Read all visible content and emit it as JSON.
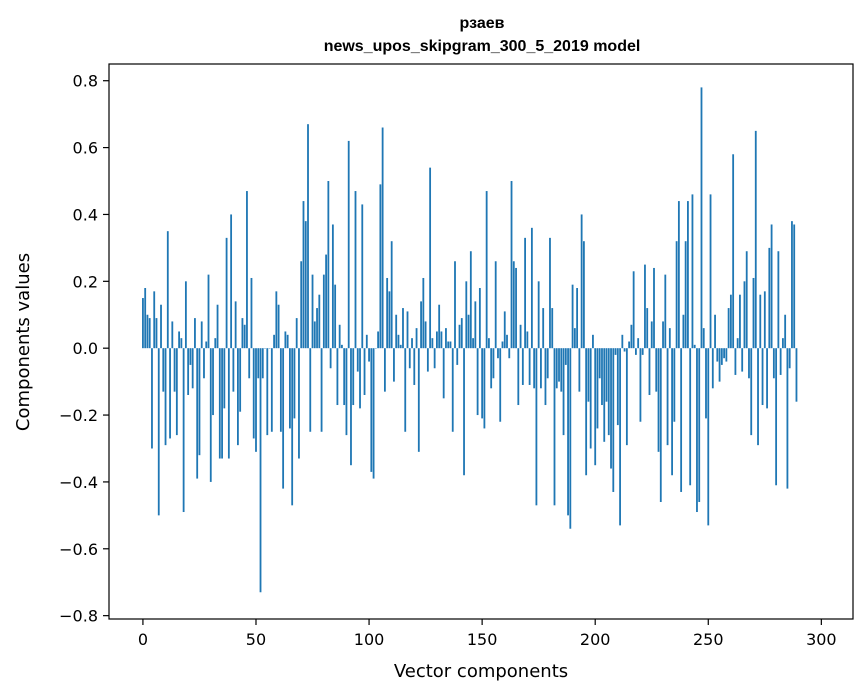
{
  "chart_data": {
    "type": "bar",
    "title": "рзаев",
    "subtitle": "news_upos_skipgram_300_5_2019 model",
    "xlabel": "Vector components",
    "ylabel": "Components values",
    "xlim": [
      -15,
      314
    ],
    "ylim": [
      -0.81,
      0.85
    ],
    "x_ticks": [
      0,
      50,
      100,
      150,
      200,
      250,
      300
    ],
    "x_tick_labels": [
      "0",
      "50",
      "100",
      "150",
      "200",
      "250",
      "300"
    ],
    "y_ticks": [
      -0.8,
      -0.6,
      -0.4,
      -0.2,
      0.0,
      0.2,
      0.4,
      0.6,
      0.8
    ],
    "y_tick_labels": [
      "−0.8",
      "−0.6",
      "−0.4",
      "−0.2",
      "0.0",
      "0.2",
      "0.4",
      "0.6",
      "0.8"
    ],
    "grid": false,
    "bar_color": "#1f77b4",
    "values": [
      0.15,
      0.18,
      0.1,
      0.09,
      -0.3,
      0.17,
      0.09,
      -0.5,
      0.13,
      -0.13,
      -0.29,
      0.35,
      -0.27,
      0.08,
      -0.13,
      -0.26,
      0.05,
      0.03,
      -0.49,
      0.2,
      -0.14,
      -0.05,
      -0.12,
      0.09,
      -0.39,
      -0.32,
      0.08,
      -0.09,
      0.02,
      0.22,
      -0.4,
      -0.2,
      0.03,
      0.13,
      -0.33,
      -0.33,
      -0.18,
      0.33,
      -0.33,
      0.4,
      -0.13,
      0.14,
      -0.29,
      -0.19,
      0.09,
      0.07,
      0.47,
      -0.09,
      0.21,
      -0.27,
      -0.31,
      -0.09,
      -0.73,
      -0.09,
      0.0,
      -0.26,
      0.0,
      -0.25,
      0.04,
      0.17,
      0.13,
      -0.25,
      -0.42,
      0.05,
      0.04,
      -0.24,
      -0.47,
      -0.21,
      0.09,
      -0.33,
      0.26,
      0.44,
      0.38,
      0.67,
      -0.25,
      0.22,
      0.08,
      0.12,
      0.16,
      -0.25,
      0.22,
      0.28,
      0.5,
      -0.06,
      0.37,
      0.19,
      -0.17,
      0.07,
      0.01,
      -0.17,
      -0.26,
      0.62,
      -0.35,
      -0.17,
      0.47,
      -0.07,
      -0.18,
      0.43,
      -0.14,
      0.04,
      -0.04,
      -0.37,
      -0.39,
      0.0,
      0.05,
      0.49,
      0.66,
      -0.13,
      0.21,
      0.17,
      0.32,
      -0.1,
      0.1,
      0.04,
      0.01,
      0.12,
      -0.25,
      0.11,
      -0.06,
      0.03,
      -0.11,
      0.06,
      -0.31,
      0.14,
      0.21,
      0.08,
      -0.07,
      0.54,
      0.03,
      -0.06,
      0.05,
      0.13,
      0.05,
      -0.15,
      0.06,
      0.02,
      0.02,
      -0.25,
      0.26,
      -0.05,
      0.07,
      0.09,
      -0.38,
      0.2,
      0.1,
      0.29,
      0.03,
      0.14,
      -0.2,
      0.18,
      -0.21,
      -0.24,
      0.47,
      0.03,
      -0.12,
      -0.09,
      0.26,
      -0.03,
      -0.22,
      0.02,
      0.11,
      0.04,
      -0.03,
      0.5,
      0.26,
      0.24,
      -0.17,
      0.07,
      -0.11,
      0.33,
      0.05,
      -0.11,
      0.36,
      -0.12,
      -0.47,
      0.2,
      -0.12,
      0.12,
      -0.17,
      -0.09,
      0.33,
      0.12,
      -0.47,
      -0.12,
      -0.1,
      -0.13,
      -0.26,
      -0.05,
      -0.5,
      -0.54,
      0.19,
      0.06,
      0.18,
      -0.13,
      0.4,
      0.32,
      -0.38,
      -0.16,
      -0.3,
      0.04,
      -0.35,
      -0.24,
      -0.09,
      -0.17,
      -0.28,
      -0.16,
      -0.26,
      -0.36,
      -0.43,
      -0.02,
      -0.23,
      -0.53,
      0.04,
      -0.01,
      -0.29,
      0.02,
      0.07,
      0.23,
      -0.02,
      0.03,
      -0.22,
      -0.02,
      0.25,
      0.12,
      -0.14,
      0.08,
      0.24,
      -0.13,
      -0.31,
      -0.46,
      0.08,
      0.22,
      -0.29,
      0.06,
      -0.38,
      -0.22,
      0.32,
      0.44,
      -0.43,
      0.1,
      0.32,
      0.44,
      -0.41,
      0.46,
      0.01,
      -0.49,
      -0.46,
      0.78,
      0.06,
      -0.21,
      -0.53,
      0.46,
      -0.12,
      0.1,
      -0.04,
      -0.1,
      -0.05,
      -0.03,
      -0.04,
      0.12,
      0.16,
      0.58,
      -0.08,
      0.03,
      0.16,
      -0.07,
      0.2,
      0.29,
      -0.09,
      -0.26,
      0.21,
      0.65,
      -0.29,
      0.16,
      -0.17,
      0.17,
      -0.18,
      0.3,
      0.37,
      -0.09,
      -0.41,
      0.29,
      -0.08,
      0.03,
      0.1,
      -0.42,
      -0.06,
      0.38,
      0.37,
      -0.16
    ]
  }
}
